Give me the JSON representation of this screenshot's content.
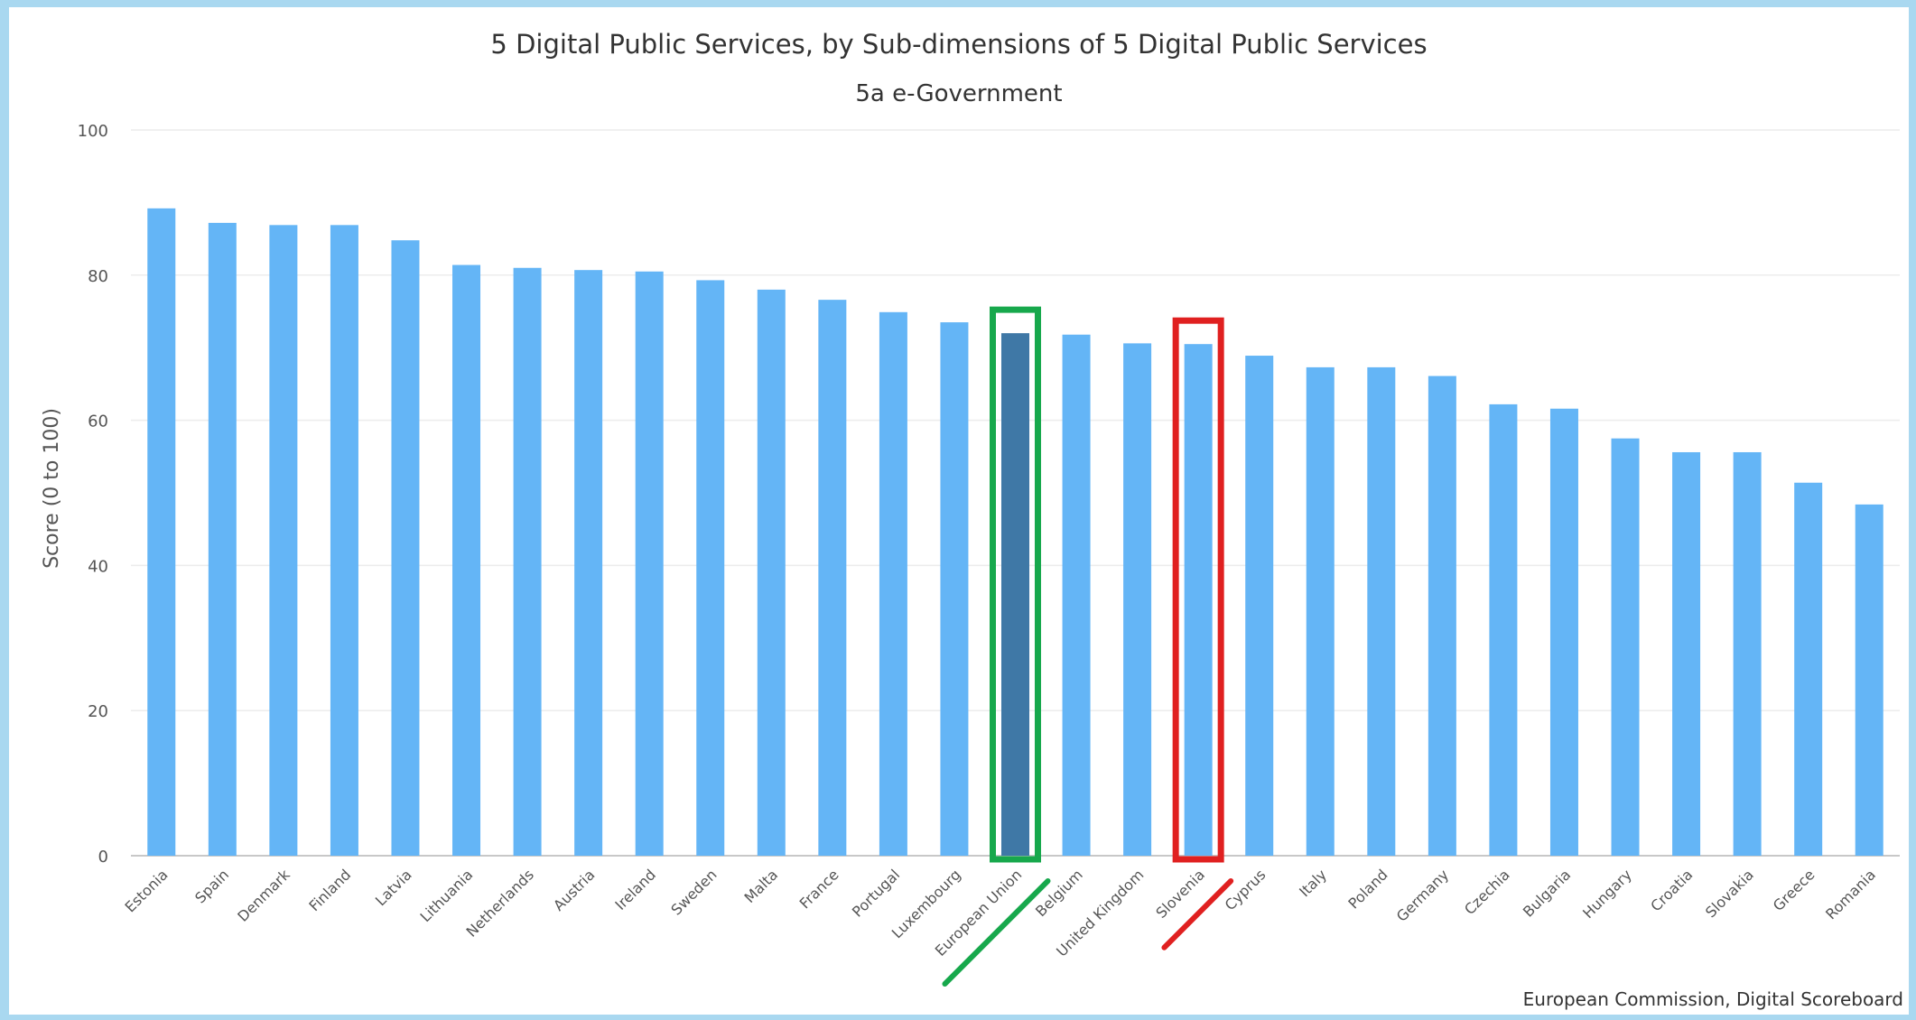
{
  "chart_data": {
    "type": "bar",
    "title": "5 Digital Public Services, by Sub-dimensions of 5 Digital Public Services",
    "subtitle": "5a e-Government",
    "ylabel": "Score (0 to 100)",
    "xlabel": "",
    "ylim": [
      0,
      100
    ],
    "yticks": [
      "0",
      "20",
      "40",
      "60",
      "80",
      "100"
    ],
    "grid": true,
    "credit": "European Commission, Digital Scoreboard",
    "categories": [
      "Estonia",
      "Spain",
      "Denmark",
      "Finland",
      "Latvia",
      "Lithuania",
      "Netherlands",
      "Austria",
      "Ireland",
      "Sweden",
      "Malta",
      "France",
      "Portugal",
      "Luxembourg",
      "European Union",
      "Belgium",
      "United Kingdom",
      "Slovenia",
      "Cyprus",
      "Italy",
      "Poland",
      "Germany",
      "Czechia",
      "Bulgaria",
      "Hungary",
      "Croatia",
      "Slovakia",
      "Greece",
      "Romania"
    ],
    "values": [
      89.2,
      87.2,
      86.9,
      86.9,
      84.8,
      81.4,
      81.0,
      80.7,
      80.5,
      79.3,
      78.0,
      76.6,
      74.9,
      73.5,
      72.0,
      71.8,
      70.6,
      70.5,
      68.9,
      67.3,
      67.3,
      66.1,
      62.2,
      61.6,
      57.5,
      55.6,
      55.6,
      51.4,
      48.4
    ],
    "colors": {
      "bar": "#64b5f6",
      "highlight_bar": "#3f78a6",
      "eu_marker": "#17a84c",
      "slovenia_marker": "#e02020"
    },
    "highlighted_category": "European Union",
    "annotations": [
      {
        "category": "European Union",
        "shape": "rectangle-outline-with-underline",
        "color": "#17a84c"
      },
      {
        "category": "Slovenia",
        "shape": "rectangle-outline-with-underline",
        "color": "#e02020"
      }
    ]
  }
}
